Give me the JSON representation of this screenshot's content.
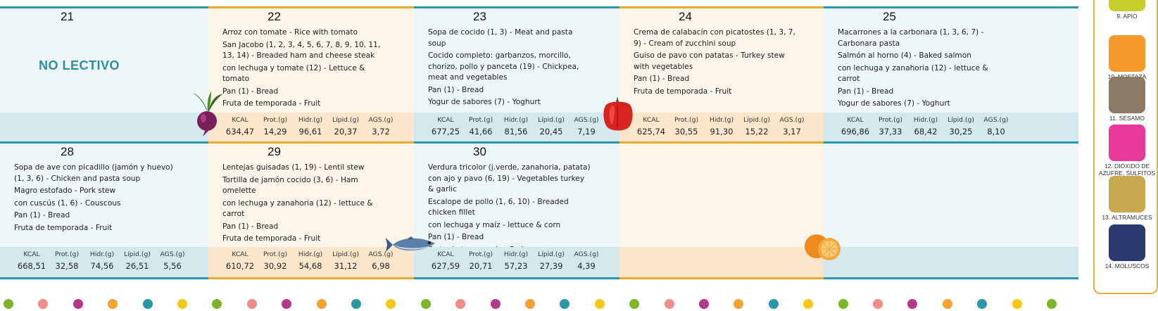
{
  "week1": {
    "days": [
      {
        "num": "21",
        "status": "NO LECTIVO",
        "menu": [],
        "nutri": null
      },
      {
        "num": "22",
        "menu": [
          "Arroz con tomate  - Rice with tomato",
          "San Jacobo (1, 2, 3, 4, 5, 6, 7, 8, 9, 10, 11, 13, 14) - Breaded ham and cheese steak",
          "con lechuga y tomate (12) - Lettuce & tomato",
          "Pan (1) - Bread",
          "Fruta de temporada  - Fruit"
        ],
        "nutri": [
          "634,47",
          "14,29",
          "96,61",
          "20,37",
          "3,72"
        ]
      },
      {
        "num": "23",
        "menu": [
          "Sopa de cocido (1, 3) - Meat and pasta soup",
          "Cocido completo: garbanzos, morcillo, chorizo, pollo y panceta (19) - Chickpea, meat and vegetables",
          "Pan (1) - Bread",
          "Yogur de sabores (7) - Yoghurt"
        ],
        "nutri": [
          "677,25",
          "41,66",
          "81,56",
          "20,45",
          "7,19"
        ]
      },
      {
        "num": "24",
        "menu": [
          "Crema de calabacín con picatostes (1, 3, 7, 9) - Cream of zucchini soup",
          "Guiso de pavo con patatas  - Turkey stew with vegetables",
          "Pan (1) - Bread",
          "Fruta de temporada  - Fruit"
        ],
        "nutri": [
          "625,74",
          "30,55",
          "91,30",
          "15,22",
          "3,17"
        ]
      },
      {
        "num": "25",
        "menu": [
          "Macarrones a la carbonara (1, 3, 6, 7) - Carbonara pasta",
          "Salmón al horno (4) - Baked salmon",
          "con lechuga y zanahoria (12) - lettuce & carrot",
          "Pan (1) - Bread",
          "Yogur de sabores (7) - Yoghurt"
        ],
        "nutri": [
          "696,86",
          "37,33",
          "68,42",
          "30,25",
          "8,10"
        ]
      }
    ]
  },
  "week2": {
    "days": [
      {
        "num": "28",
        "menu": [
          "Sopa de ave con picadillo (jamón y huevo) (1, 3, 6) - Chicken and pasta soup",
          "Magro estofado  - Pork stew",
          "con cuscús (1, 6) - Couscous",
          "Pan (1) - Bread",
          "Fruta de temporada  - Fruit"
        ],
        "nutri": [
          "668,51",
          "32,58",
          "74,56",
          "26,51",
          "5,56"
        ]
      },
      {
        "num": "29",
        "menu": [
          "Lentejas guisadas (1, 19) - Lentil stew",
          "Tortilla de jamón cocido (3, 6) - Ham omelette",
          "con lechuga y zanahoria (12) - lettuce & carrot",
          "Pan (1) - Bread",
          "Fruta de temporada  - Fruit"
        ],
        "nutri": [
          "610,72",
          "30,92",
          "54,68",
          "31,12",
          "6,98"
        ]
      },
      {
        "num": "30",
        "menu": [
          "Verdura tricolor (j.verde, zanahoria, patata) con ajo y pavo (6, 19) - Vegetables turkey & garlic",
          "Escalope de pollo (1, 6, 10) - Breaded chicken fillet",
          "con lechuga y maíz  - lettuce & corn",
          "Pan (1) - Bread",
          "Fruta de temporada  - Fruit"
        ],
        "nutri": [
          "627,59",
          "20,71",
          "57,23",
          "27,39",
          "4,39"
        ]
      },
      {
        "num": "",
        "menu": [],
        "nutri": null
      },
      {
        "num": "",
        "menu": [],
        "nutri": null
      }
    ]
  },
  "nutri_headers": [
    "KCAL",
    "Prot.(g)",
    "Hidr.(g)",
    "Lípid.(g)",
    "AGS.(g)"
  ],
  "allergens": [
    {
      "label": "9. APIO",
      "color": "#c9cf2a"
    },
    {
      "label": "10. MOSTAZA",
      "color": "#f39a2a"
    },
    {
      "label": "11. SÉSAMO",
      "color": "#8a7a66"
    },
    {
      "label": "12. DIÓXIDO DE AZUFRE, SULFITOS",
      "color": "#e8389a"
    },
    {
      "label": "13. ALTRAMUCES",
      "color": "#c9a94d"
    },
    {
      "label": "14. MOLUSCOS",
      "color": "#2b3a6e"
    }
  ],
  "colors": {
    "blue": "#2c97a9",
    "orange": "#e9ac32",
    "dots": [
      "#7bb52a",
      "#f28c8a",
      "#b33a8a",
      "#f4a233",
      "#2c97a9",
      "#f2c91a"
    ]
  }
}
